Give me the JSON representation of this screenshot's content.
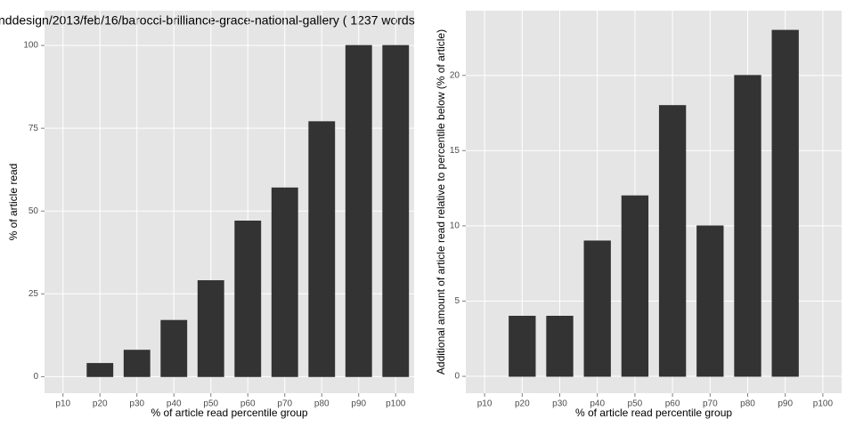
{
  "chart_data": [
    {
      "type": "bar",
      "title": "nddesign/2013/feb/16/barocci-brilliance-grace-national-gallery ( 1237 words",
      "x_label": "% of article read percentile group",
      "y_label": "% of article read",
      "categories": [
        "p10",
        "p20",
        "p30",
        "p40",
        "p50",
        "p60",
        "p70",
        "p80",
        "p90",
        "p100"
      ],
      "values": [
        0,
        4,
        8,
        17,
        29,
        47,
        57,
        77,
        100,
        100
      ],
      "color": "#333333",
      "ylim": [
        -5,
        110.5
      ],
      "yticks": [
        0,
        25,
        50,
        75,
        100
      ],
      "grid": true
    },
    {
      "type": "bar",
      "x_label": "% of article read percentile group",
      "y_label": "Additional amount of article read relative to percentile below (% of article)",
      "categories": [
        "p10",
        "p20",
        "p30",
        "p40",
        "p50",
        "p60",
        "p70",
        "p80",
        "p90",
        "p100"
      ],
      "values": [
        0,
        4,
        4,
        9,
        12,
        18,
        10,
        20,
        23,
        0
      ],
      "color": "#333333",
      "ylim": [
        -1.12,
        24.3
      ],
      "yticks": [
        0,
        5,
        10,
        15,
        20
      ],
      "grid": true
    }
  ]
}
